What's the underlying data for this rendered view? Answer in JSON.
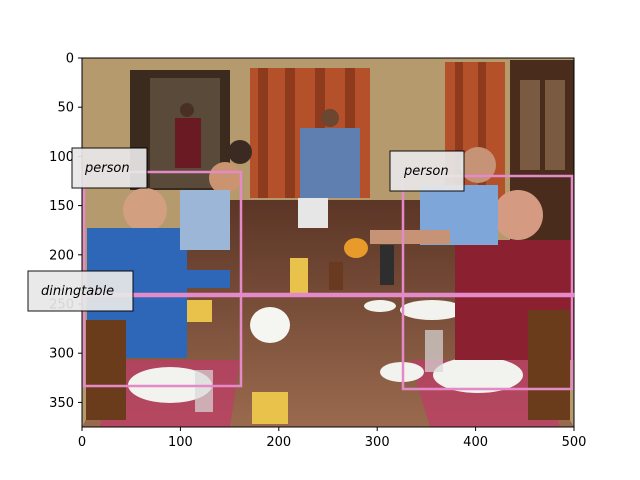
{
  "image": {
    "description_width": 500,
    "description_height": 375
  },
  "axes": {
    "x_ticks": [
      "0",
      "100",
      "200",
      "300",
      "400",
      "500"
    ],
    "y_ticks": [
      "0",
      "50",
      "100",
      "150",
      "200",
      "250",
      "300",
      "350"
    ],
    "xlim": [
      0,
      500
    ],
    "ylim": [
      375,
      0
    ]
  },
  "detections": [
    {
      "label": "person",
      "box_color": "#e58ac8"
    },
    {
      "label": "person",
      "box_color": "#e58ac8"
    },
    {
      "label": "diningtable",
      "box_color": "#e58ac8"
    }
  ],
  "colors": {
    "wall": "#b59a6e",
    "curtain": "#b4502a",
    "tablecloth": "#7a4a32",
    "shirt_blue": "#2f67b8",
    "shirt_red": "#8a2030",
    "label_bg": "#e8e8e8"
  }
}
